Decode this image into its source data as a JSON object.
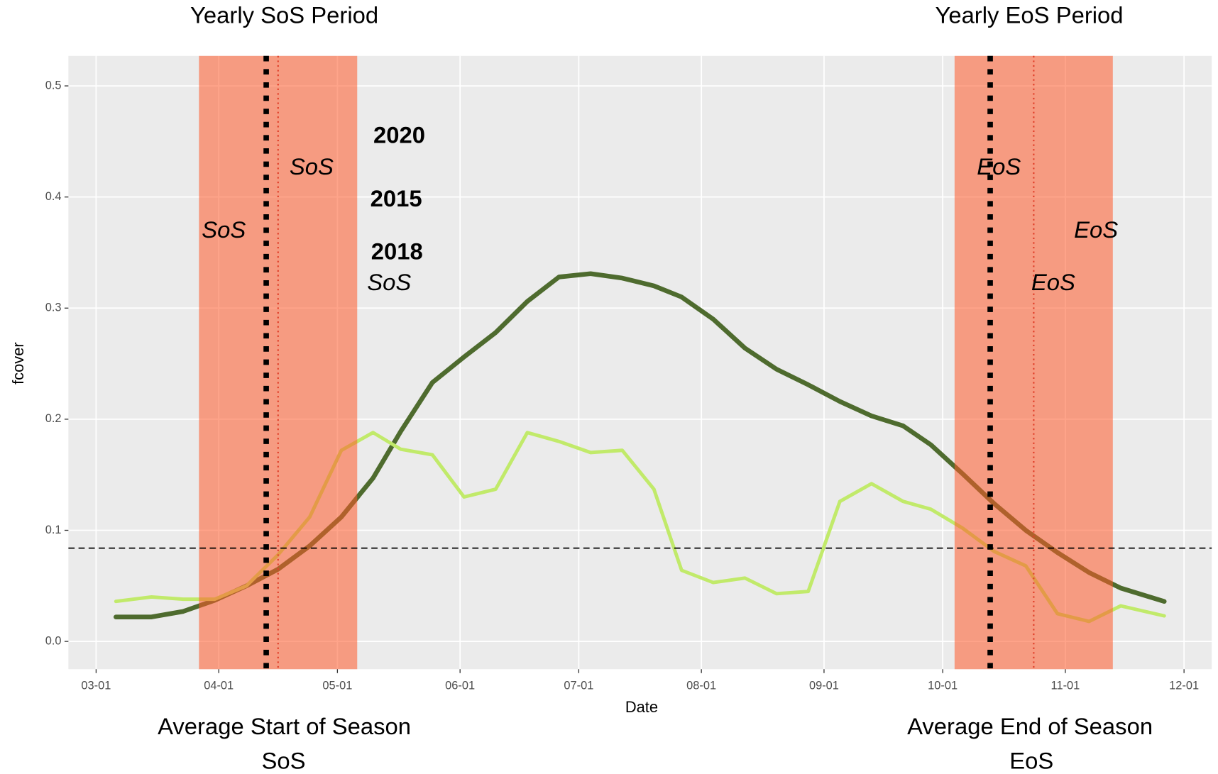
{
  "chart_data": {
    "type": "line",
    "x": [
      "03-06",
      "03-15",
      "03-23",
      "03-31",
      "04-08",
      "04-16",
      "04-24",
      "05-02",
      "05-10",
      "05-17",
      "05-25",
      "06-02",
      "06-10",
      "06-18",
      "06-26",
      "07-04",
      "07-12",
      "07-20",
      "07-27",
      "08-04",
      "08-12",
      "08-20",
      "08-28",
      "09-05",
      "09-13",
      "09-21",
      "09-28",
      "10-06",
      "10-14",
      "10-22",
      "10-30",
      "11-07",
      "11-15",
      "11-26"
    ],
    "series": [
      {
        "color": "#4e6b2e",
        "values": [
          0.022,
          0.022,
          0.027,
          0.037,
          0.05,
          0.065,
          0.086,
          0.112,
          0.147,
          0.189,
          0.233,
          0.256,
          0.278,
          0.306,
          0.328,
          0.331,
          0.327,
          0.32,
          0.31,
          0.29,
          0.264,
          0.245,
          0.231,
          0.216,
          0.203,
          0.194,
          0.177,
          0.151,
          0.124,
          0.1,
          0.08,
          0.062,
          0.048,
          0.036
        ]
      },
      {
        "color": "#c1ea6a",
        "values": [
          0.036,
          0.04,
          0.038,
          0.038,
          0.05,
          0.078,
          0.112,
          0.172,
          0.188,
          0.173,
          0.168,
          0.13,
          0.137,
          0.188,
          0.18,
          0.17,
          0.172,
          0.137,
          0.064,
          0.053,
          0.057,
          0.043,
          0.045,
          0.126,
          0.142,
          0.126,
          0.119,
          0.102,
          0.081,
          0.068,
          0.025,
          0.018,
          0.032,
          0.023
        ]
      }
    ],
    "xlabel": "Date",
    "ylabel": "fcover",
    "xlim": [
      "02-22",
      "12-08"
    ],
    "xticks": [
      "03-01",
      "04-01",
      "05-01",
      "06-01",
      "07-01",
      "08-01",
      "09-01",
      "10-01",
      "11-01",
      "12-01"
    ],
    "ylim": [
      -0.025,
      0.527
    ],
    "yticks": [
      {
        "value": 0,
        "label": "0.0"
      },
      0.1,
      0.2,
      0.3,
      0.4,
      0.5
    ],
    "grid": true,
    "shaded_periods": [
      {
        "start": "03-27",
        "end": "05-06"
      },
      {
        "start": "10-04",
        "end": "11-13"
      }
    ],
    "shade_color": "#ff5a2a",
    "vlines": [
      {
        "x": "04-13",
        "color": "#000000",
        "style": "dotted-bold"
      },
      {
        "x": "04-16",
        "color": "#e0402a",
        "style": "dotted"
      },
      {
        "x": "10-13",
        "color": "#000000",
        "style": "dotted-bold"
      },
      {
        "x": "10-24",
        "color": "#e0402a",
        "style": "dotted"
      }
    ],
    "hline": {
      "y": 0.084,
      "color": "#000000",
      "style": "dashed"
    },
    "annotations": [
      {
        "text": "Yearly SoS Period",
        "style": "normal"
      },
      {
        "text": "Yearly EoS Period",
        "style": "normal"
      },
      {
        "text": "Average Start of Season",
        "style": "normal"
      },
      {
        "text": "SoS",
        "style": "normal"
      },
      {
        "text": "Average End of Season",
        "style": "normal"
      },
      {
        "text": "EoS",
        "style": "normal"
      },
      {
        "text": "2020",
        "style": "bold"
      },
      {
        "text": "2015",
        "style": "bold"
      },
      {
        "text": "2018",
        "style": "bold"
      },
      {
        "text": "SoS",
        "style": "italic"
      },
      {
        "text": "SoS",
        "style": "italic"
      },
      {
        "text": "SoS",
        "style": "italic"
      },
      {
        "text": "EoS",
        "style": "italic"
      },
      {
        "text": "EoS",
        "style": "italic"
      },
      {
        "text": "EoS",
        "style": "italic"
      }
    ]
  }
}
